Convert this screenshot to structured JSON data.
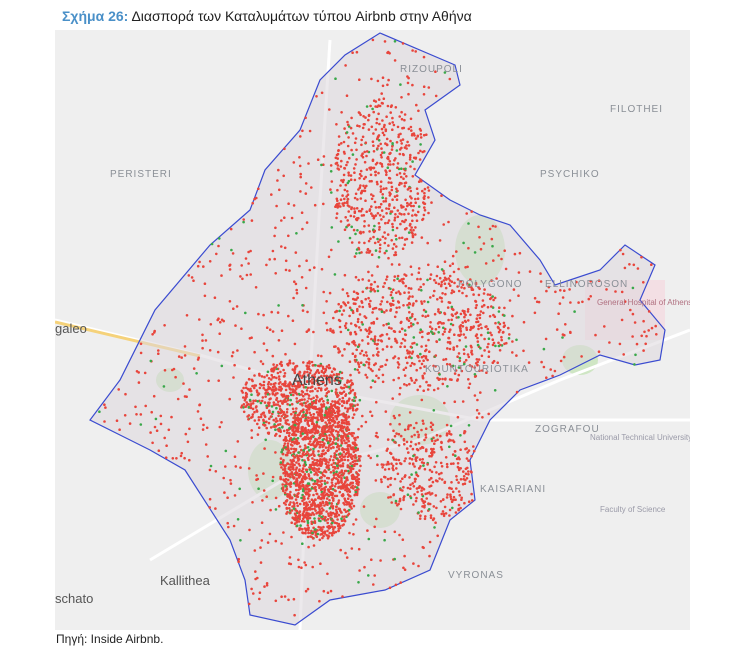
{
  "caption": {
    "label": "Σχήμα 26:",
    "title": "Διασπορά των Καταλυμάτων τύπου Airbnb στην Αθήνα"
  },
  "map": {
    "labels": [
      "Athens",
      "Kallithea",
      "galeo",
      "schato",
      "ZOGRAFOU",
      "KAISARIANI",
      "VYRONAS",
      "PERISTERI",
      "RIZOUPOLI",
      "PSYCHIKO",
      "FILOTHEI",
      "POLYGONO",
      "ELLINOROSON",
      "KOUNTOURIOTIKA",
      "National Technical University of Athens - Campus",
      "Faculty of Science",
      "General Hospital of Athens \"Giorgos Gennimatas\""
    ]
  },
  "source": "Πηγή: Inside Airbnb."
}
